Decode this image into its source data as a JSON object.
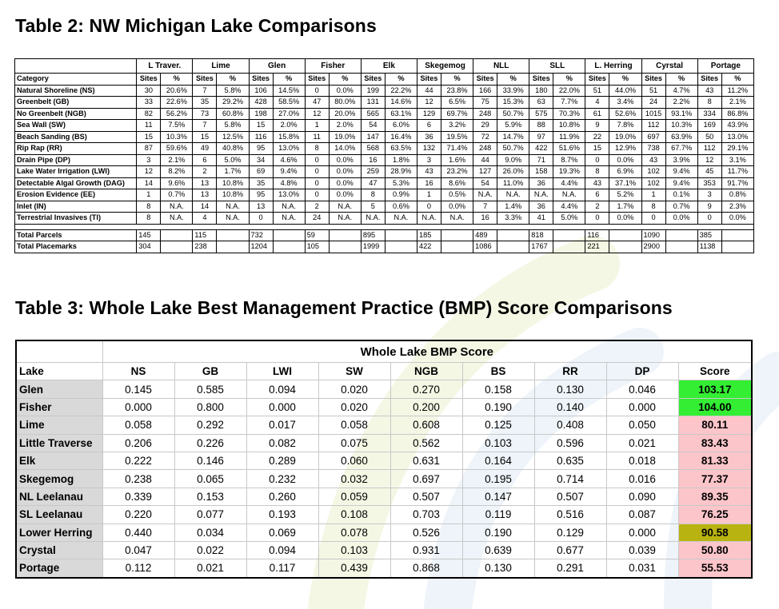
{
  "table2": {
    "title": "Table 2: NW Michigan Lake Comparisons",
    "category_header": "Category",
    "lakes": [
      "L Traver.",
      "Lime",
      "Glen",
      "Fisher",
      "Elk",
      "Skegemog",
      "NLL",
      "SLL",
      "L. Herring",
      "Cyrstal",
      "Portage"
    ],
    "sub_labels": {
      "sites": "Sites",
      "pct": "%"
    },
    "rows": [
      {
        "label": "Natural Shoreline (NS)",
        "values": [
          "30",
          "20.6%",
          "7",
          "5.8%",
          "106",
          "14.5%",
          "0",
          "0.0%",
          "199",
          "22.2%",
          "44",
          "23.8%",
          "166",
          "33.9%",
          "180",
          "22.0%",
          "51",
          "44.0%",
          "51",
          "4.7%",
          "43",
          "11.2%"
        ]
      },
      {
        "label": "Greenbelt (GB)",
        "values": [
          "33",
          "22.6%",
          "35",
          "29.2%",
          "428",
          "58.5%",
          "47",
          "80.0%",
          "131",
          "14.6%",
          "12",
          "6.5%",
          "75",
          "15.3%",
          "63",
          "7.7%",
          "4",
          "3.4%",
          "24",
          "2.2%",
          "8",
          "2.1%"
        ]
      },
      {
        "label": "No Greenbelt (NGB)",
        "values": [
          "82",
          "56.2%",
          "73",
          "60.8%",
          "198",
          "27.0%",
          "12",
          "20.0%",
          "565",
          "63.1%",
          "129",
          "69.7%",
          "248",
          "50.7%",
          "575",
          "70.3%",
          "61",
          "52.6%",
          "1015",
          "93.1%",
          "334",
          "86.8%"
        ]
      },
      {
        "label": "Sea Wall (SW)",
        "values": [
          "11",
          "7.5%",
          "7",
          "5.8%",
          "15",
          "2.0%",
          "1",
          "2.0%",
          "54",
          "6.0%",
          "6",
          "3.2%",
          "29",
          "5.9%",
          "88",
          "10.8%",
          "9",
          "7.8%",
          "112",
          "10.3%",
          "169",
          "43.9%"
        ]
      },
      {
        "label": "Beach Sanding (BS)",
        "values": [
          "15",
          "10.3%",
          "15",
          "12.5%",
          "116",
          "15.8%",
          "11",
          "19.0%",
          "147",
          "16.4%",
          "36",
          "19.5%",
          "72",
          "14.7%",
          "97",
          "11.9%",
          "22",
          "19.0%",
          "697",
          "63.9%",
          "50",
          "13.0%"
        ]
      },
      {
        "label": "Rip Rap (RR)",
        "values": [
          "87",
          "59.6%",
          "49",
          "40.8%",
          "95",
          "13.0%",
          "8",
          "14.0%",
          "568",
          "63.5%",
          "132",
          "71.4%",
          "248",
          "50.7%",
          "422",
          "51.6%",
          "15",
          "12.9%",
          "738",
          "67.7%",
          "112",
          "29.1%"
        ]
      },
      {
        "label": "Drain Pipe (DP)",
        "values": [
          "3",
          "2.1%",
          "6",
          "5.0%",
          "34",
          "4.6%",
          "0",
          "0.0%",
          "16",
          "1.8%",
          "3",
          "1.6%",
          "44",
          "9.0%",
          "71",
          "8.7%",
          "0",
          "0.0%",
          "43",
          "3.9%",
          "12",
          "3.1%"
        ]
      },
      {
        "label": "Lake Water Irrigation (LWI)",
        "values": [
          "12",
          "8.2%",
          "2",
          "1.7%",
          "69",
          "9.4%",
          "0",
          "0.0%",
          "259",
          "28.9%",
          "43",
          "23.2%",
          "127",
          "26.0%",
          "158",
          "19.3%",
          "8",
          "6.9%",
          "102",
          "9.4%",
          "45",
          "11.7%"
        ]
      },
      {
        "label": "Detectable Algal Growth (DAG)",
        "values": [
          "14",
          "9.6%",
          "13",
          "10.8%",
          "35",
          "4.8%",
          "0",
          "0.0%",
          "47",
          "5.3%",
          "16",
          "8.6%",
          "54",
          "11.0%",
          "36",
          "4.4%",
          "43",
          "37.1%",
          "102",
          "9.4%",
          "353",
          "91.7%"
        ]
      },
      {
        "label": "Erosion Evidence (EE)",
        "values": [
          "1",
          "0.7%",
          "13",
          "10.8%",
          "95",
          "13.0%",
          "0",
          "0.0%",
          "8",
          "0.9%",
          "1",
          "0.5%",
          "N.A.",
          "N.A.",
          "N.A.",
          "N.A.",
          "6",
          "5.2%",
          "1",
          "0.1%",
          "3",
          "0.8%"
        ]
      },
      {
        "label": "Inlet (IN)",
        "values": [
          "8",
          "N.A.",
          "14",
          "N.A.",
          "13",
          "N.A.",
          "2",
          "N.A.",
          "5",
          "0.6%",
          "0",
          "0.0%",
          "7",
          "1.4%",
          "36",
          "4.4%",
          "2",
          "1.7%",
          "8",
          "0.7%",
          "9",
          "2.3%"
        ]
      },
      {
        "label": "Terrestrial Invasives (TI)",
        "values": [
          "8",
          "N.A.",
          "4",
          "N.A.",
          "0",
          "N.A.",
          "24",
          "N.A.",
          "N.A.",
          "N.A.",
          "N.A.",
          "N.A.",
          "16",
          "3.3%",
          "41",
          "5.0%",
          "0",
          "0.0%",
          "0",
          "0.0%",
          "0",
          "0.0%"
        ]
      }
    ],
    "totals": [
      {
        "label": "Total Parcels",
        "values": [
          "145",
          "115",
          "732",
          "59",
          "895",
          "185",
          "489",
          "818",
          "116",
          "1090",
          "385"
        ]
      },
      {
        "label": "Total Placemarks",
        "values": [
          "304",
          "238",
          "1204",
          "105",
          "1999",
          "422",
          "1086",
          "1767",
          "221",
          "2900",
          "1138"
        ]
      }
    ]
  },
  "table3": {
    "title": "Table 3: Whole Lake Best Management Practice (BMP) Score Comparisons",
    "group_header": "Whole Lake BMP Score",
    "columns": [
      "Lake",
      "NS",
      "GB",
      "LWI",
      "SW",
      "NGB",
      "BS",
      "RR",
      "DP",
      "Score"
    ],
    "rows": [
      {
        "lake": "Glen",
        "values": [
          "0.145",
          "0.585",
          "0.094",
          "0.020",
          "0.270",
          "0.158",
          "0.130",
          "0.046"
        ],
        "score": "103.17",
        "score_color": "#33ee33"
      },
      {
        "lake": "Fisher",
        "values": [
          "0.000",
          "0.800",
          "0.000",
          "0.020",
          "0.200",
          "0.190",
          "0.140",
          "0.000"
        ],
        "score": "104.00",
        "score_color": "#33ee33"
      },
      {
        "lake": "Lime",
        "values": [
          "0.058",
          "0.292",
          "0.017",
          "0.058",
          "0.608",
          "0.125",
          "0.408",
          "0.050"
        ],
        "score": "80.11",
        "score_color": "#fcc5ca"
      },
      {
        "lake": "Little Traverse",
        "values": [
          "0.206",
          "0.226",
          "0.082",
          "0.075",
          "0.562",
          "0.103",
          "0.596",
          "0.021"
        ],
        "score": "83.43",
        "score_color": "#fcc5ca"
      },
      {
        "lake": "Elk",
        "values": [
          "0.222",
          "0.146",
          "0.289",
          "0.060",
          "0.631",
          "0.164",
          "0.635",
          "0.018"
        ],
        "score": "81.33",
        "score_color": "#fcc5ca"
      },
      {
        "lake": "Skegemog",
        "values": [
          "0.238",
          "0.065",
          "0.232",
          "0.032",
          "0.697",
          "0.195",
          "0.714",
          "0.016"
        ],
        "score": "77.37",
        "score_color": "#fcc5ca"
      },
      {
        "lake": "NL Leelanau",
        "values": [
          "0.339",
          "0.153",
          "0.260",
          "0.059",
          "0.507",
          "0.147",
          "0.507",
          "0.090"
        ],
        "score": "89.35",
        "score_color": "#fcc5ca"
      },
      {
        "lake": "SL Leelanau",
        "values": [
          "0.220",
          "0.077",
          "0.193",
          "0.108",
          "0.703",
          "0.119",
          "0.516",
          "0.087"
        ],
        "score": "76.25",
        "score_color": "#fcc5ca"
      },
      {
        "lake": "Lower Herring",
        "values": [
          "0.440",
          "0.034",
          "0.069",
          "0.078",
          "0.526",
          "0.190",
          "0.129",
          "0.000"
        ],
        "score": "90.58",
        "score_color": "#b9b312"
      },
      {
        "lake": "Crystal",
        "values": [
          "0.047",
          "0.022",
          "0.094",
          "0.103",
          "0.931",
          "0.639",
          "0.677",
          "0.039"
        ],
        "score": "50.80",
        "score_color": "#fcc5ca"
      },
      {
        "lake": "Portage",
        "values": [
          "0.112",
          "0.021",
          "0.117",
          "0.439",
          "0.868",
          "0.130",
          "0.291",
          "0.031"
        ],
        "score": "55.53",
        "score_color": "#fcc5ca"
      }
    ]
  }
}
